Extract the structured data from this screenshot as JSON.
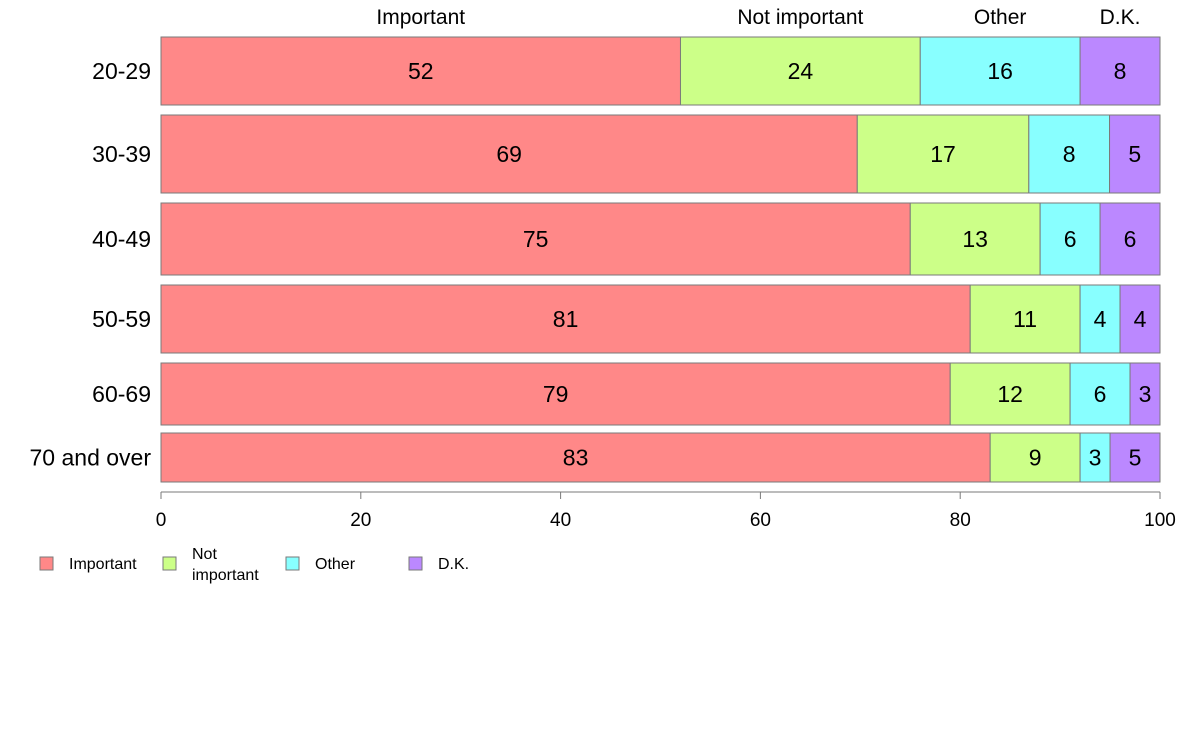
{
  "chart_data": {
    "type": "bar",
    "orientation": "horizontal",
    "stacked": true,
    "categories": [
      "20-29",
      "30-39",
      "40-49",
      "50-59",
      "60-69",
      "70 and over"
    ],
    "series": [
      {
        "name": "Important",
        "top_label": "Important",
        "legend_label": [
          "Important"
        ],
        "color": "#ff8888",
        "values": [
          52,
          69,
          75,
          81,
          79,
          83
        ]
      },
      {
        "name": "Not important",
        "top_label": "Not important",
        "legend_label": [
          "Not",
          "important"
        ],
        "color": "#ccff88",
        "values": [
          24,
          17,
          13,
          11,
          12,
          9
        ]
      },
      {
        "name": "Other",
        "top_label": "Other",
        "legend_label": [
          "Other"
        ],
        "color": "#88ffff",
        "values": [
          16,
          8,
          6,
          4,
          6,
          3
        ]
      },
      {
        "name": "D.K.",
        "top_label": "D.K.",
        "legend_label": [
          "D.K."
        ],
        "color": "#bb88ff",
        "values": [
          8,
          5,
          6,
          4,
          3,
          5
        ]
      }
    ],
    "segment_totals": [
      100,
      99,
      100,
      100,
      100,
      100
    ],
    "xlim": [
      0,
      100
    ],
    "xticks": [
      0,
      20,
      40,
      60,
      80,
      100
    ],
    "title": "",
    "xlabel": "",
    "ylabel": "",
    "grid": false,
    "legend_position": "bottom-left"
  }
}
